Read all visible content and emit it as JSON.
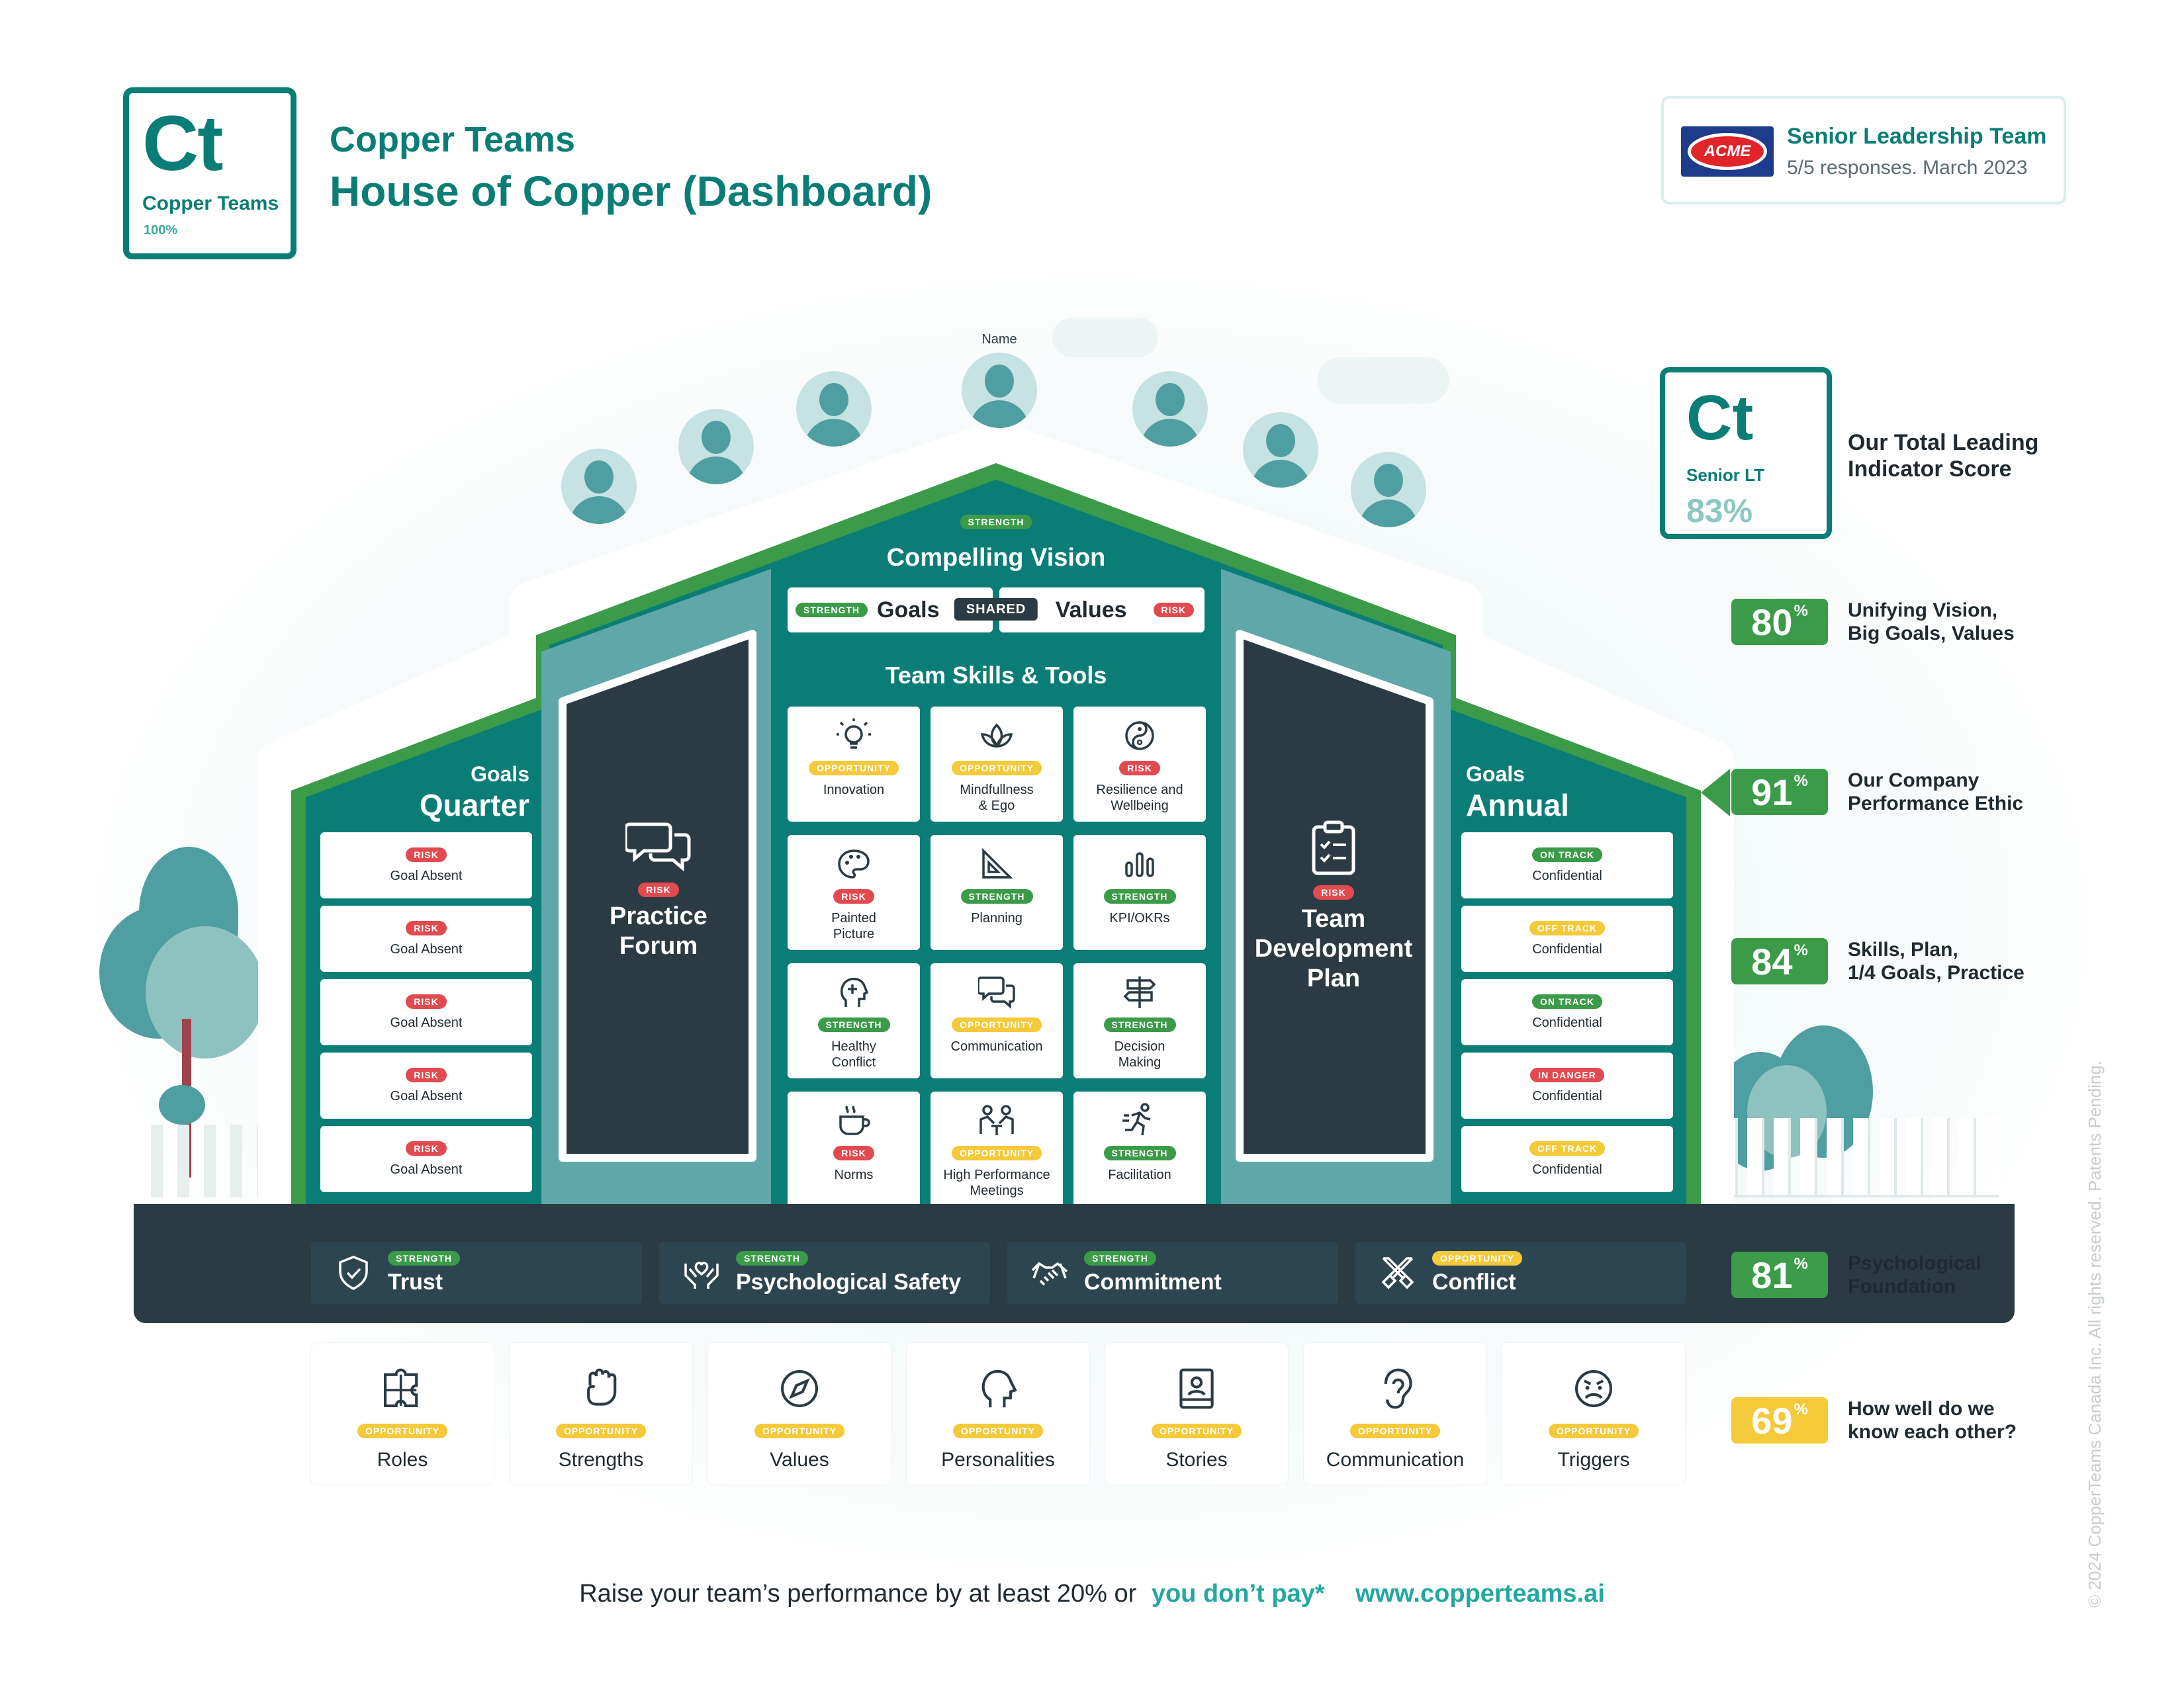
{
  "brand": {
    "symbol": "Ct",
    "name": "Copper Teams",
    "percent": "100%",
    "title_small": "Copper Teams",
    "title_large": "House of Copper (Dashboard)"
  },
  "team": {
    "logo_text": "ACME",
    "name": "Senior Leadership Team",
    "subtitle": "5/5 responses. March 2023"
  },
  "total_score": {
    "symbol": "Ct",
    "label": "Senior LT",
    "value": "83%",
    "caption_line1": "Our Total Leading",
    "caption_line2": "Indicator Score"
  },
  "scores": [
    {
      "value": "80",
      "unit": "%",
      "line1": "Unifying Vision,",
      "line2": "Big Goals, Values",
      "color": "#3b9b48"
    },
    {
      "value": "91",
      "unit": "%",
      "line1": "Our Company",
      "line2": "Performance Ethic",
      "color": "#3b9b48"
    },
    {
      "value": "84",
      "unit": "%",
      "line1": "Skills, Plan,",
      "line2": "1/4 Goals, Practice",
      "color": "#3b9b48"
    },
    {
      "value": "81",
      "unit": "%",
      "line1": "Psychological",
      "line2": "Foundation",
      "color": "#3b9b48"
    },
    {
      "value": "69",
      "unit": "%",
      "line1": "How well do we",
      "line2": "know each other?",
      "color": "#f4c93a"
    }
  ],
  "members": [
    {
      "name": "Name"
    },
    {
      "name": "Name"
    },
    {
      "name": "Name"
    },
    {
      "name": "Name"
    },
    {
      "name": "Name"
    },
    {
      "name": "Name"
    },
    {
      "name": "Name"
    }
  ],
  "roof": {
    "vision_status": "Strength",
    "vision_title": "Compelling Vision",
    "goals_status": "Strength",
    "goals_label": "Goals",
    "shared_label": "Shared",
    "values_label": "Values",
    "values_status": "Risk",
    "skills_title": "Team Skills & Tools"
  },
  "quarter": {
    "small": "Goals",
    "large": "Quarter",
    "items": [
      {
        "status": "Risk",
        "label": "Goal Absent"
      },
      {
        "status": "Risk",
        "label": "Goal Absent"
      },
      {
        "status": "Risk",
        "label": "Goal Absent"
      },
      {
        "status": "Risk",
        "label": "Goal Absent"
      },
      {
        "status": "Risk",
        "label": "Goal Absent"
      }
    ]
  },
  "annual": {
    "small": "Goals",
    "large": "Annual",
    "items": [
      {
        "status": "On Track",
        "label": "Confidential"
      },
      {
        "status": "Off Track",
        "label": "Confidential"
      },
      {
        "status": "On Track",
        "label": "Confidential"
      },
      {
        "status": "In Danger",
        "label": "Confidential"
      },
      {
        "status": "Off Track",
        "label": "Confidential"
      }
    ]
  },
  "practice": {
    "status": "Risk",
    "line1": "Practice",
    "line2": "Forum"
  },
  "plan": {
    "status": "Risk",
    "line1": "Team",
    "line2": "Development",
    "line3": "Plan"
  },
  "skills": [
    {
      "status": "Opportunity",
      "line1": "Innovation",
      "line2": "",
      "icon": "lightbulb-icon"
    },
    {
      "status": "Opportunity",
      "line1": "Mindfullness",
      "line2": "& Ego",
      "icon": "lotus-icon"
    },
    {
      "status": "Risk",
      "line1": "Resilience and",
      "line2": "Wellbeing",
      "icon": "yin-yang-icon"
    },
    {
      "status": "Risk",
      "line1": "Painted",
      "line2": "Picture",
      "icon": "palette-icon"
    },
    {
      "status": "Strength",
      "line1": "Planning",
      "line2": "",
      "icon": "set-square-icon"
    },
    {
      "status": "Strength",
      "line1": "KPI/OKRs",
      "line2": "",
      "icon": "bar-chart-icon"
    },
    {
      "status": "Strength",
      "line1": "Healthy",
      "line2": "Conflict",
      "icon": "head-plus-icon"
    },
    {
      "status": "Opportunity",
      "line1": "Communication",
      "line2": "",
      "icon": "chat-bubbles-icon"
    },
    {
      "status": "Strength",
      "line1": "Decision",
      "line2": "Making",
      "icon": "signpost-icon"
    },
    {
      "status": "Risk",
      "line1": "Norms",
      "line2": "",
      "icon": "coffee-cup-icon"
    },
    {
      "status": "Opportunity",
      "line1": "High Performance",
      "line2": "Meetings",
      "icon": "meeting-icon"
    },
    {
      "status": "Strength",
      "line1": "Facilitation",
      "line2": "",
      "icon": "runner-icon"
    }
  ],
  "foundation": [
    {
      "status": "Strength",
      "label": "Trust",
      "icon": "shield-check-icon"
    },
    {
      "status": "Strength",
      "label": "Psychological Safety",
      "icon": "hands-heart-icon"
    },
    {
      "status": "Strength",
      "label": "Commitment",
      "icon": "handshake-icon"
    },
    {
      "status": "Opportunity",
      "label": "Conflict",
      "icon": "crossed-swords-icon"
    }
  ],
  "know_each_other": [
    {
      "status": "Opportunity",
      "label": "Roles",
      "icon": "puzzle-icon"
    },
    {
      "status": "Opportunity",
      "label": "Strengths",
      "icon": "fist-icon"
    },
    {
      "status": "Opportunity",
      "label": "Values",
      "icon": "compass-icon"
    },
    {
      "status": "Opportunity",
      "label": "Personalities",
      "icon": "head-profile-icon"
    },
    {
      "status": "Opportunity",
      "label": "Stories",
      "icon": "book-icon"
    },
    {
      "status": "Opportunity",
      "label": "Communication",
      "icon": "ear-icon"
    },
    {
      "status": "Opportunity",
      "label": "Triggers",
      "icon": "angry-face-icon"
    }
  ],
  "footer": {
    "tagline": "Raise your team’s performance by at least 20% or",
    "guarantee": "you don’t pay*",
    "url": "www.copperteams.ai",
    "copyright": "© 2024 CopperTeams Canada Inc. All rights reserved. Patents Pending."
  },
  "colors": {
    "teal": "#0b7d77",
    "dark": "#2a3b43",
    "green": "#3b9b48",
    "risk": "#e14a4f",
    "opportunity": "#f4c93a"
  }
}
